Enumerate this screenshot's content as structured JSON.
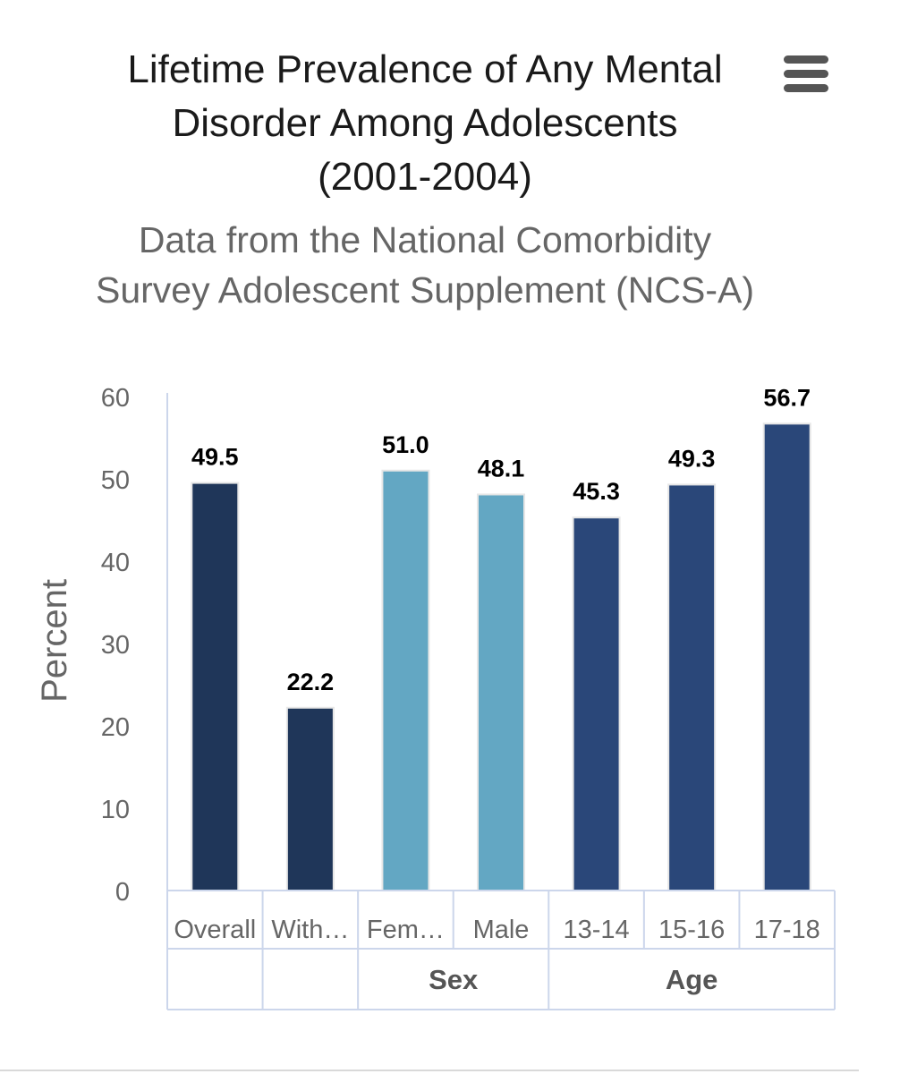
{
  "chart_data": {
    "type": "bar",
    "title": "Lifetime Prevalence of Any Mental Disorder Among Adolescents (2001-2004)",
    "subtitle": "Data from the National Comorbidity Survey Adolescent Supplement (NCS-A)",
    "ylabel": "Percent",
    "ylim": [
      0,
      60
    ],
    "yticks": [
      0,
      10,
      20,
      30,
      40,
      50,
      60
    ],
    "categories": [
      "Overall",
      "With…",
      "Fem…",
      "Male",
      "13-14",
      "15-16",
      "17-18"
    ],
    "values": [
      49.5,
      22.2,
      51.0,
      48.1,
      45.3,
      49.3,
      56.7
    ],
    "value_labels": [
      "49.5",
      "22.2",
      "51.0",
      "48.1",
      "45.3",
      "49.3",
      "56.7"
    ],
    "groups": [
      {
        "label": "",
        "start": 0,
        "end": 0
      },
      {
        "label": "",
        "start": 1,
        "end": 1
      },
      {
        "label": "Sex",
        "start": 2,
        "end": 3
      },
      {
        "label": "Age",
        "start": 4,
        "end": 6
      }
    ],
    "bar_colors": [
      "#1f3659",
      "#1f3659",
      "#63a7c3",
      "#63a7c3",
      "#2a4779",
      "#2a4779",
      "#2a4779"
    ],
    "grid": false,
    "legend": "none"
  },
  "toolbar": {
    "menu_icon": "hamburger-menu-icon"
  }
}
